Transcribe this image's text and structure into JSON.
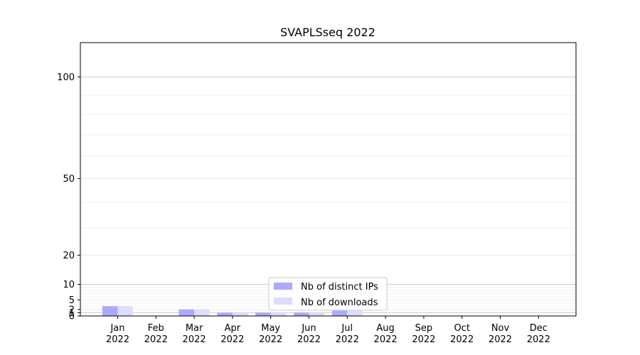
{
  "chart_data": {
    "type": "bar",
    "title": "SVAPLSseq 2022",
    "xlabel": "",
    "ylabel": "",
    "y_scale": "symlog",
    "ylim": [
      0,
      120
    ],
    "y_ticks": [
      0,
      1,
      2,
      5,
      10,
      20,
      50,
      100
    ],
    "grid": true,
    "legend_position": "bottom-center",
    "categories": [
      [
        "Jan",
        "2022"
      ],
      [
        "Feb",
        "2022"
      ],
      [
        "Mar",
        "2022"
      ],
      [
        "Apr",
        "2022"
      ],
      [
        "May",
        "2022"
      ],
      [
        "Jun",
        "2022"
      ],
      [
        "Jul",
        "2022"
      ],
      [
        "Aug",
        "2022"
      ],
      [
        "Sep",
        "2022"
      ],
      [
        "Oct",
        "2022"
      ],
      [
        "Nov",
        "2022"
      ],
      [
        "Dec",
        "2022"
      ]
    ],
    "series": [
      {
        "name": "Nb of distinct IPs",
        "color": "#aaaaff",
        "values": [
          3,
          0,
          2,
          1,
          1,
          1,
          2,
          0,
          0,
          0,
          0,
          0
        ]
      },
      {
        "name": "Nb of downloads",
        "color": "#ddddff",
        "values": [
          3,
          0,
          2,
          1,
          1,
          1,
          2,
          0,
          0,
          0,
          0,
          0
        ]
      }
    ]
  }
}
